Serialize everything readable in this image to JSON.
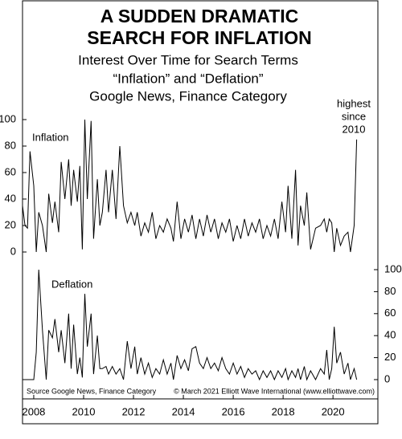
{
  "chart_data": {
    "type": "line",
    "title": [
      "A SUDDEN DRAMATIC",
      "SEARCH FOR INFLATION"
    ],
    "subtitle": [
      "Interest Over Time for Search Terms",
      "“Inflation” and “Deflation”",
      "Google News, Finance Category"
    ],
    "annotation": [
      "highest",
      "since",
      "2010"
    ],
    "source": "Source Google News, Finance Category",
    "credit": "© March 2021 Elliott Wave International (www.elliottwave.com)",
    "x": [
      2007.55,
      2007.65,
      2007.75,
      2007.85,
      2008.0,
      2008.1,
      2008.2,
      2008.35,
      2008.5,
      2008.6,
      2008.75,
      2008.85,
      2009.0,
      2009.1,
      2009.25,
      2009.4,
      2009.5,
      2009.6,
      2009.75,
      2009.85,
      2009.95,
      2010.05,
      2010.15,
      2010.3,
      2010.4,
      2010.55,
      2010.65,
      2010.75,
      2010.9,
      2011.0,
      2011.15,
      2011.3,
      2011.45,
      2011.6,
      2011.75,
      2011.9,
      2012.05,
      2012.15,
      2012.3,
      2012.45,
      2012.6,
      2012.75,
      2012.9,
      2013.05,
      2013.2,
      2013.35,
      2013.5,
      2013.6,
      2013.75,
      2013.9,
      2014.05,
      2014.2,
      2014.35,
      2014.5,
      2014.65,
      2014.8,
      2014.95,
      2015.1,
      2015.25,
      2015.4,
      2015.55,
      2015.7,
      2015.85,
      2016.0,
      2016.15,
      2016.3,
      2016.45,
      2016.6,
      2016.75,
      2016.9,
      2017.05,
      2017.2,
      2017.35,
      2017.5,
      2017.65,
      2017.8,
      2017.95,
      2018.1,
      2018.2,
      2018.35,
      2018.5,
      2018.6,
      2018.7,
      2018.85,
      2018.95,
      2019.1,
      2019.3,
      2019.5,
      2019.65,
      2019.75,
      2019.85,
      2019.95,
      2020.05,
      2020.15,
      2020.3,
      2020.45,
      2020.6,
      2020.7,
      2020.85,
      2020.95
    ],
    "series": [
      {
        "name": "Inflation",
        "color": "#000000",
        "axis": "y",
        "values": [
          35,
          20,
          18,
          76,
          50,
          0,
          30,
          20,
          0,
          44,
          22,
          38,
          15,
          68,
          40,
          70,
          35,
          62,
          38,
          65,
          2,
          100,
          40,
          99,
          10,
          55,
          20,
          30,
          62,
          30,
          62,
          25,
          80,
          35,
          22,
          30,
          20,
          30,
          12,
          22,
          15,
          30,
          10,
          20,
          15,
          25,
          18,
          8,
          38,
          10,
          25,
          15,
          28,
          10,
          25,
          12,
          28,
          15,
          25,
          10,
          22,
          15,
          25,
          8,
          20,
          10,
          25,
          12,
          22,
          15,
          25,
          10,
          20,
          12,
          25,
          10,
          38,
          15,
          50,
          10,
          62,
          5,
          35,
          20,
          45,
          2,
          18,
          20,
          25,
          15,
          25,
          22,
          0,
          18,
          5,
          12,
          15,
          0,
          20,
          85
        ]
      },
      {
        "name": "Deflation",
        "color": "#000000",
        "axis": "y2",
        "values": [
          0,
          0,
          0,
          0,
          0,
          25,
          100,
          45,
          0,
          45,
          38,
          55,
          25,
          45,
          15,
          60,
          10,
          50,
          5,
          20,
          2,
          78,
          30,
          60,
          5,
          40,
          10,
          10,
          12,
          5,
          12,
          5,
          10,
          0,
          35,
          10,
          30,
          5,
          20,
          5,
          15,
          2,
          10,
          5,
          18,
          5,
          15,
          0,
          22,
          10,
          18,
          8,
          28,
          30,
          15,
          10,
          20,
          10,
          15,
          8,
          20,
          10,
          5,
          15,
          5,
          12,
          2,
          10,
          5,
          8,
          0,
          8,
          2,
          8,
          0,
          8,
          2,
          10,
          0,
          8,
          2,
          10,
          0,
          12,
          0,
          8,
          0,
          10,
          5,
          27,
          0,
          10,
          48,
          15,
          25,
          5,
          15,
          0,
          10,
          0
        ]
      }
    ],
    "xlim": [
      2007.55,
      2021.8
    ],
    "xticks": [
      2008,
      2010,
      2012,
      2014,
      2016,
      2018,
      2020
    ],
    "ylim": [
      0,
      100
    ],
    "yticks": [
      0,
      20,
      40,
      60,
      80,
      100
    ],
    "y2lim": [
      0,
      100
    ],
    "y2ticks": [
      0,
      20,
      40,
      60,
      80,
      100
    ]
  }
}
